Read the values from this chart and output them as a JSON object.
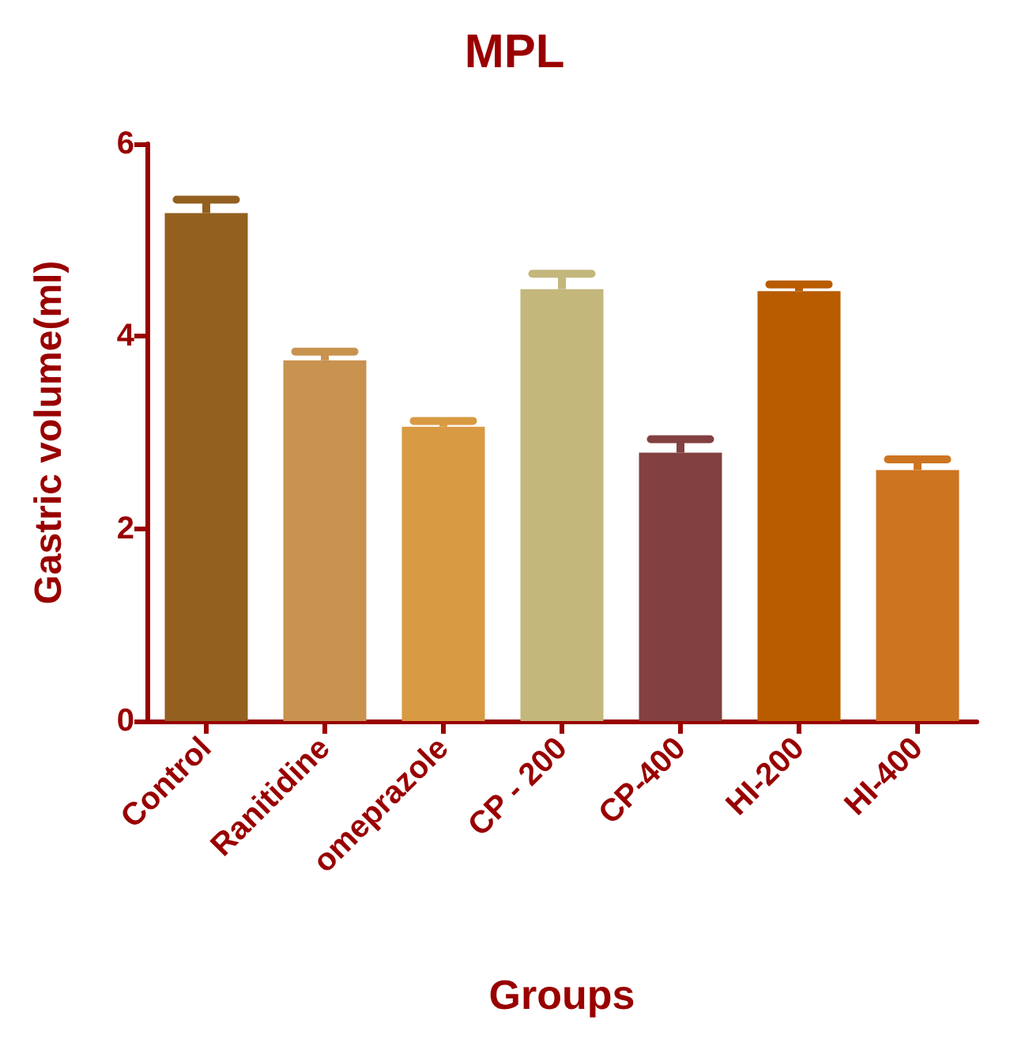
{
  "chart_data": {
    "type": "bar",
    "title": "MPL",
    "xlabel": "Groups",
    "ylabel": "Gastric volume(ml)",
    "categories": [
      "Control",
      "Ranitidine",
      "omeprazole",
      "CP - 200",
      "CP-400",
      "HI-200",
      "HI-400"
    ],
    "values": [
      5.28,
      3.75,
      3.06,
      4.49,
      2.79,
      4.47,
      2.61
    ],
    "colors": [
      "#93601f",
      "#c8924f",
      "#d89a42",
      "#c3b77c",
      "#834040",
      "#b95c00",
      "#cd7420"
    ],
    "errors": [
      [
        5.28,
        5.42
      ],
      [
        3.75,
        3.84
      ],
      [
        3.06,
        3.12
      ],
      [
        4.49,
        4.65
      ],
      [
        2.79,
        2.93
      ],
      [
        4.47,
        4.54
      ],
      [
        2.61,
        2.72
      ]
    ],
    "ylim": [
      0,
      6
    ],
    "yticks": [
      0,
      2,
      4,
      6
    ],
    "grid": false
  }
}
